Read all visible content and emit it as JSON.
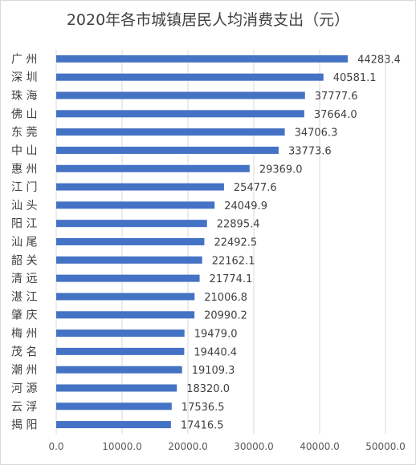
{
  "chart_data": {
    "type": "bar",
    "orientation": "horizontal",
    "title": "2020年各市城镇居民人均消费支出（元）",
    "xlabel": "",
    "ylabel": "",
    "xlim": [
      0,
      50000
    ],
    "x_ticks": [
      "0.0",
      "10000.0",
      "20000.0",
      "30000.0",
      "40000.0",
      "50000.0"
    ],
    "grid": true,
    "legend": "none",
    "bar_color": "#4472c4",
    "categories": [
      "广州",
      "深圳",
      "珠海",
      "佛山",
      "东莞",
      "中山",
      "惠州",
      "江门",
      "汕头",
      "阳江",
      "汕尾",
      "韶关",
      "清远",
      "湛江",
      "肇庆",
      "梅州",
      "茂名",
      "潮州",
      "河源",
      "云浮",
      "揭阳"
    ],
    "category_labels": [
      "广 州",
      "深 圳",
      "珠 海",
      "佛 山",
      "东 莞",
      "中 山",
      "惠 州",
      "江 门",
      "汕 头",
      "阳 江",
      "汕 尾",
      "韶 关",
      "清 远",
      "湛 江",
      "肇 庆",
      "梅 州",
      "茂 名",
      "潮 州",
      "河 源",
      "云 浮",
      "揭 阳"
    ],
    "values": [
      44283.4,
      40581.1,
      37777.6,
      37664.0,
      34706.3,
      33773.6,
      29369.0,
      25477.6,
      24049.9,
      22895.4,
      22492.5,
      22162.1,
      21774.1,
      21006.8,
      20990.2,
      19479.0,
      19440.4,
      19109.3,
      18320.0,
      17536.5,
      17416.5
    ],
    "value_labels": [
      "44283.4",
      "40581.1",
      "37777.6",
      "37664.0",
      "34706.3",
      "33773.6",
      "29369.0",
      "25477.6",
      "24049.9",
      "22895.4",
      "22492.5",
      "22162.1",
      "21774.1",
      "21006.8",
      "20990.2",
      "19479.0",
      "19440.4",
      "19109.3",
      "18320.0",
      "17536.5",
      "17416.5"
    ]
  }
}
